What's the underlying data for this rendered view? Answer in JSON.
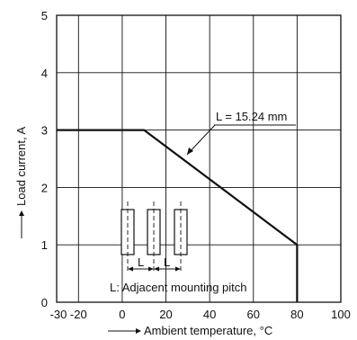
{
  "chart_data": {
    "type": "line",
    "title": "",
    "xlabel": "Ambient temperature, °C",
    "ylabel": "Load current, A",
    "xlim": [
      -30,
      100
    ],
    "ylim": [
      0,
      5
    ],
    "x_ticks": [
      "-30",
      "-20",
      "0",
      "20",
      "40",
      "60",
      "80",
      "100"
    ],
    "x_tick_values": [
      -30,
      -20,
      0,
      20,
      40,
      60,
      80,
      100
    ],
    "y_ticks": [
      "0",
      "1",
      "2",
      "3",
      "4",
      "5"
    ],
    "y_tick_values": [
      0,
      1,
      2,
      3,
      4,
      5
    ],
    "grid": true,
    "series": [
      {
        "name": "L = 15.24 mm",
        "x": [
          -30,
          10,
          80,
          80
        ],
        "y": [
          3,
          3,
          1,
          0
        ]
      }
    ],
    "annotations": {
      "series_label": "L = 15.24 mm",
      "pitch_label_left": "L",
      "pitch_label_right": "L",
      "pitch_caption": "L: Adjacent mounting pitch"
    }
  }
}
